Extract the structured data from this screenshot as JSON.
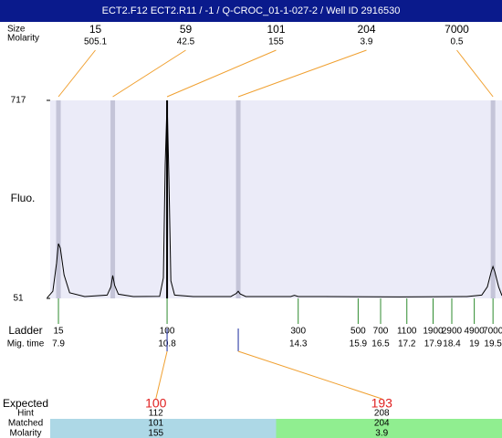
{
  "header": {
    "title": "ECT2.F12 ECT2.R11 / -1 / Q-CROC_01-1-027-2 / Well ID 2916530"
  },
  "row_labels": {
    "size": "Size",
    "molarity": "Molarity"
  },
  "peaks": [
    {
      "size": "15",
      "molarity": "505.1",
      "time": 7.9,
      "color": "#c4c4d8"
    },
    {
      "size": "59",
      "molarity": "42.5",
      "time": 9.35,
      "color": "#c4c4d8"
    },
    {
      "size": "101",
      "molarity": "155",
      "time": 10.8,
      "color": "#000000"
    },
    {
      "size": "204",
      "molarity": "3.9",
      "time": 12.7,
      "color": "#c4c4d8"
    },
    {
      "size": "7000",
      "molarity": "0.5",
      "time": 19.5,
      "color": "#c4c4d8"
    }
  ],
  "y_label": "Fluo.",
  "ylim": [
    51,
    717
  ],
  "yticks": [
    51,
    717
  ],
  "xlim": [
    7.68,
    19.74
  ],
  "trace": {
    "x": [
      7.6,
      7.75,
      7.85,
      7.9,
      7.95,
      8.05,
      8.2,
      8.6,
      9.2,
      9.3,
      9.35,
      9.4,
      9.5,
      9.9,
      10.6,
      10.7,
      10.75,
      10.8,
      10.85,
      10.9,
      11.0,
      11.5,
      12.5,
      12.65,
      12.7,
      12.75,
      12.9,
      13.5,
      14.1,
      14.2,
      14.3,
      15.0,
      17.0,
      18.8,
      19.2,
      19.35,
      19.45,
      19.5,
      19.55,
      19.65,
      19.74
    ],
    "y": [
      53,
      75,
      170,
      235,
      220,
      130,
      70,
      57,
      62,
      90,
      128,
      95,
      65,
      57,
      58,
      120,
      500,
      717,
      450,
      110,
      62,
      57,
      57,
      68,
      75,
      66,
      57,
      57,
      57,
      61,
      57,
      57,
      56,
      57,
      62,
      90,
      140,
      158,
      140,
      90,
      60
    ]
  },
  "ladder": {
    "label": "Ladder",
    "time_label": "Mig. time",
    "sizes": [
      "15",
      "100",
      "300",
      "500",
      "700",
      "1100",
      "1900",
      "2900",
      "4900",
      "7000"
    ],
    "times": [
      7.9,
      10.8,
      14.3,
      15.9,
      16.5,
      17.2,
      17.9,
      18.4,
      19,
      19.5
    ]
  },
  "expected": {
    "label": "Expected",
    "hint_label": "Hint",
    "matched_label": "Matched",
    "molarity_label": "Molarity",
    "items": [
      {
        "value": "100",
        "hint": "112",
        "matched": "101",
        "molarity": "155",
        "time": 10.8,
        "color": "#add8e6"
      },
      {
        "value": "193",
        "hint": "208",
        "matched": "204",
        "molarity": "3.9",
        "time": 12.7,
        "color": "#90ee90"
      }
    ]
  }
}
